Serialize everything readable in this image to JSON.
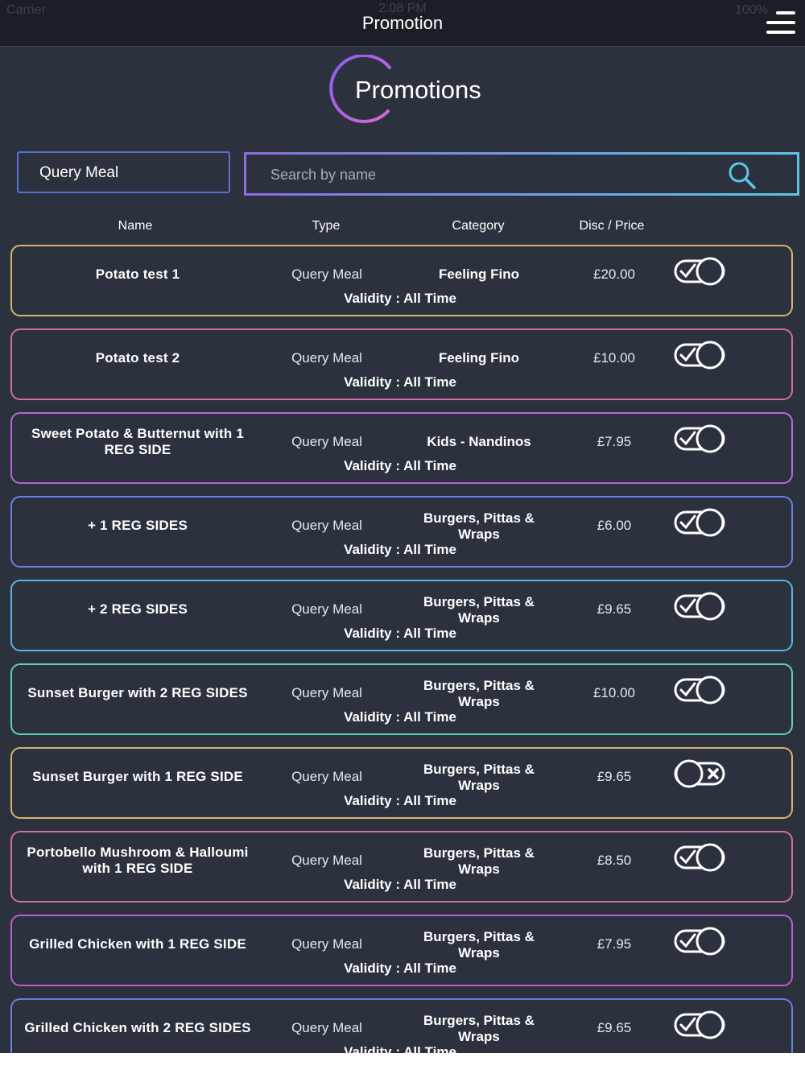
{
  "status_bar": {
    "carrier": "Carrier",
    "time": "2:08 PM",
    "battery": "100%"
  },
  "navbar": {
    "title": "Promotion",
    "menu_icon": "hamburger-menu-icon"
  },
  "header": {
    "title": "Promotions"
  },
  "filter": {
    "type_value": "Query Meal"
  },
  "search": {
    "placeholder": "Search by name",
    "value": "",
    "icon": "search-icon"
  },
  "columns": [
    "Name",
    "Type",
    "Category",
    "Disc / Price"
  ],
  "colors": {
    "background": "#2b323d",
    "navbar": "#1a1f26",
    "row_borders": [
      "#d8b46a",
      "#d46aa8",
      "#b26ad8",
      "#6a7fe0",
      "#5bb4e0",
      "#5fd0c0",
      "#d8b46a",
      "#d46aa8",
      "#c05ad0",
      "#6a7fe0"
    ]
  },
  "rows": [
    {
      "name": [
        "Potato test 1"
      ],
      "type": "Query Meal",
      "category": [
        "Feeling Fino"
      ],
      "price": "£20.00",
      "validity": "Validity : All Time",
      "active": true
    },
    {
      "name": [
        "Potato test 2"
      ],
      "type": "Query Meal",
      "category": [
        "Feeling Fino"
      ],
      "price": "£10.00",
      "validity": "Validity : All Time",
      "active": true
    },
    {
      "name": [
        "Sweet Potato & Butternut with 1",
        "REG SIDE"
      ],
      "type": "Query Meal",
      "category": [
        "Kids - Nandinos"
      ],
      "price": "£7.95",
      "validity": "Validity : All Time",
      "active": true
    },
    {
      "name": [
        "+ 1 REG SIDES"
      ],
      "type": "Query Meal",
      "category": [
        "Burgers, Pittas &",
        "Wraps"
      ],
      "price": "£6.00",
      "validity": "Validity : All Time",
      "active": true
    },
    {
      "name": [
        "+ 2 REG SIDES"
      ],
      "type": "Query Meal",
      "category": [
        "Burgers, Pittas &",
        "Wraps"
      ],
      "price": "£9.65",
      "validity": "Validity : All Time",
      "active": true
    },
    {
      "name": [
        "Sunset Burger with 2 REG SIDES"
      ],
      "type": "Query Meal",
      "category": [
        "Burgers, Pittas &",
        "Wraps"
      ],
      "price": "£10.00",
      "validity": "Validity : All Time",
      "active": true
    },
    {
      "name": [
        "Sunset Burger with 1 REG SIDE"
      ],
      "type": "Query Meal",
      "category": [
        "Burgers, Pittas &",
        "Wraps"
      ],
      "price": "£9.65",
      "validity": "Validity : All Time",
      "active": false
    },
    {
      "name": [
        "Portobello Mushroom & Halloumi",
        "with 1 REG SIDE"
      ],
      "type": "Query Meal",
      "category": [
        "Burgers, Pittas &",
        "Wraps"
      ],
      "price": "£8.50",
      "validity": "Validity : All Time",
      "active": true
    },
    {
      "name": [
        "Grilled Chicken with 1 REG SIDE"
      ],
      "type": "Query Meal",
      "category": [
        "Burgers, Pittas &",
        "Wraps"
      ],
      "price": "£7.95",
      "validity": "Validity : All Time",
      "active": true
    },
    {
      "name": [
        "Grilled Chicken with 2 REG SIDES"
      ],
      "type": "Query Meal",
      "category": [
        "Burgers, Pittas &",
        "Wraps"
      ],
      "price": "£9.65",
      "validity": "Validity : All Time",
      "active": true
    }
  ]
}
